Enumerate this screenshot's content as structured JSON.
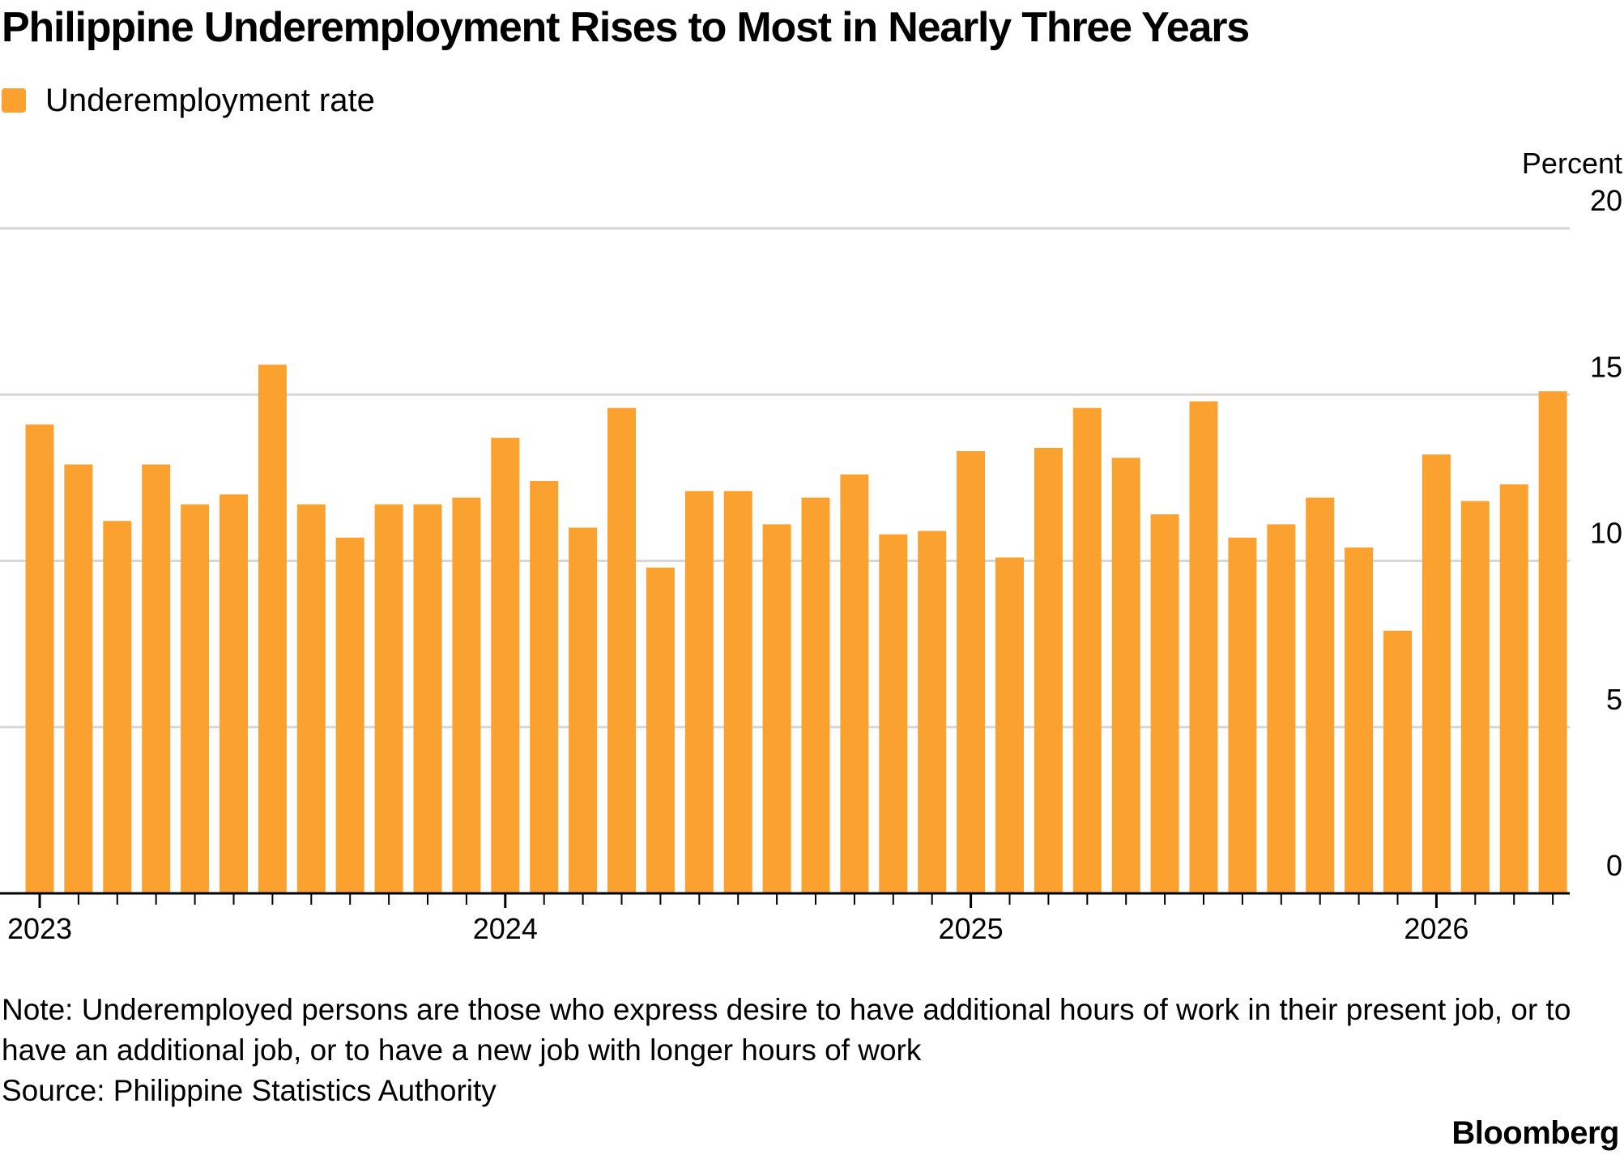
{
  "title": "Philippine Underemployment Rises to Most in Nearly Three Years",
  "legend": {
    "label": "Underemployment rate"
  },
  "colors": {
    "bar": "#fba12f",
    "grid": "#d6d6d6",
    "axis": "#000000",
    "text": "#000000"
  },
  "note": "Note: Underemployed persons are those who express desire to have additional hours of work in their present job, or to have an additional job, or to have a new job with longer hours of work",
  "source": "Source: Philippine Statistics Authority",
  "brand": "Bloomberg",
  "chart_data": {
    "type": "bar",
    "title": "Philippine Underemployment Rises to Most in Nearly Three Years",
    "series": [
      {
        "name": "Underemployment rate",
        "x": [
          "2023-01",
          "2023-02",
          "2023-03",
          "2023-04",
          "2023-05",
          "2023-06",
          "2023-07",
          "2023-08",
          "2023-09",
          "2023-10",
          "2023-11",
          "2023-12",
          "2024-01",
          "2024-02",
          "2024-03",
          "2024-04",
          "2024-05",
          "2024-06",
          "2024-07",
          "2024-08",
          "2024-09",
          "2024-10",
          "2024-11",
          "2024-12",
          "2025-01",
          "2025-02",
          "2025-03",
          "2025-04",
          "2025-05",
          "2025-06",
          "2025-07",
          "2025-08",
          "2025-09",
          "2025-10",
          "2025-11",
          "2025-12",
          "2026-01",
          "2026-02",
          "2026-03",
          "2026-04"
        ],
        "values": [
          14.1,
          12.9,
          11.2,
          12.9,
          11.7,
          12.0,
          15.9,
          11.7,
          10.7,
          11.7,
          11.7,
          11.9,
          13.7,
          12.4,
          11.0,
          14.6,
          9.8,
          12.1,
          12.1,
          11.1,
          11.9,
          12.6,
          10.8,
          10.9,
          13.3,
          10.1,
          13.4,
          14.6,
          13.1,
          11.4,
          14.8,
          10.7,
          11.1,
          11.9,
          10.4,
          7.9,
          13.2,
          11.8,
          12.3,
          15.1
        ]
      }
    ],
    "y_axis": {
      "unit_label": "Percent",
      "ticks": [
        0,
        5,
        10,
        15,
        20
      ],
      "ylim": [
        0,
        20
      ],
      "position": "right"
    },
    "x_axis": {
      "labels": [
        {
          "text": "2023",
          "at": "2023-01"
        },
        {
          "text": "2024",
          "at": "2024-01"
        },
        {
          "text": "2025",
          "at": "2025-01"
        },
        {
          "text": "2026",
          "at": "2026-01"
        }
      ]
    },
    "grid": true,
    "legend_position": "top-left"
  }
}
